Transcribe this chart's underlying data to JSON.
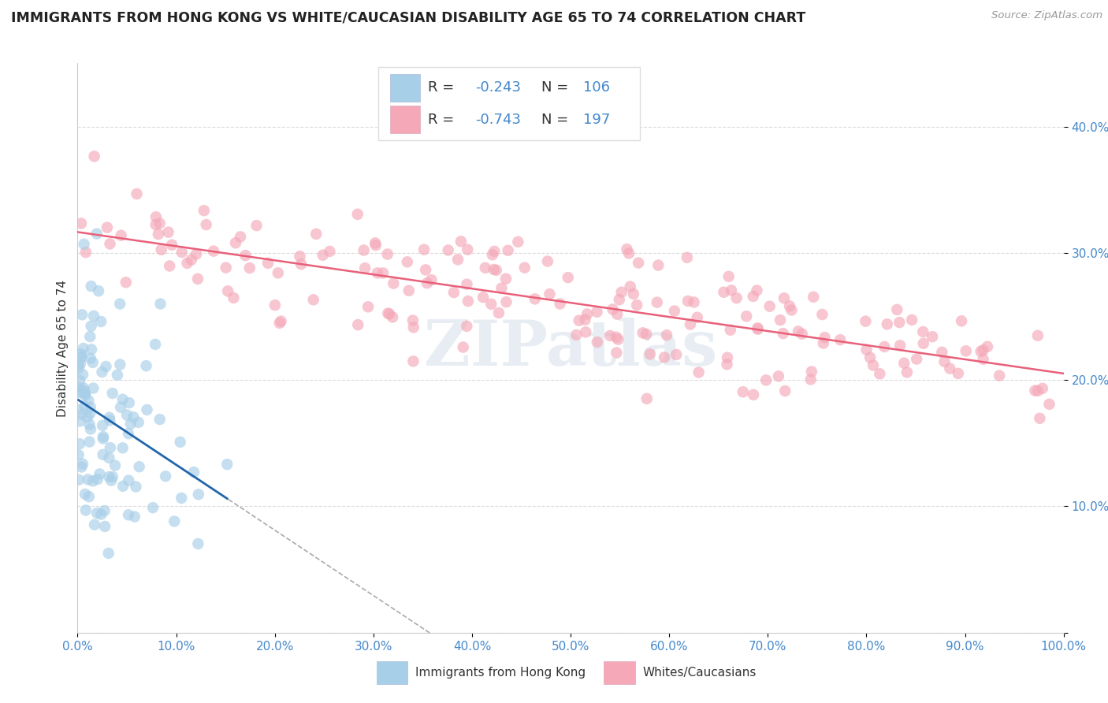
{
  "title": "IMMIGRANTS FROM HONG KONG VS WHITE/CAUCASIAN DISABILITY AGE 65 TO 74 CORRELATION CHART",
  "source": "Source: ZipAtlas.com",
  "ylabel": "Disability Age 65 to 74",
  "legend1_label": "Immigrants from Hong Kong",
  "legend2_label": "Whites/Caucasians",
  "R1": -0.243,
  "N1": 106,
  "R2": -0.743,
  "N2": 197,
  "color1": "#a8cfe8",
  "color2": "#f4a8b8",
  "line_color1": "#2166ac",
  "line_color2": "#e8607a",
  "text_color": "#4488cc",
  "label_color": "#333333",
  "watermark_color": "#d0dde8",
  "grid_color": "#cccccc",
  "xlim": [
    0.0,
    1.0
  ],
  "ylim": [
    0.0,
    0.45
  ],
  "xtick_vals": [
    0.0,
    0.1,
    0.2,
    0.3,
    0.4,
    0.5,
    0.6,
    0.7,
    0.8,
    0.9,
    1.0
  ],
  "xtick_labels": [
    "0.0%",
    "10.0%",
    "20.0%",
    "30.0%",
    "40.0%",
    "50.0%",
    "60.0%",
    "70.0%",
    "80.0%",
    "90.0%",
    "100.0%"
  ],
  "ytick_vals": [
    0.0,
    0.1,
    0.2,
    0.3,
    0.4
  ],
  "ytick_labels": [
    "",
    "10.0%",
    "20.0%",
    "30.0%",
    "40.0%"
  ],
  "seed1": 42,
  "seed2": 123
}
